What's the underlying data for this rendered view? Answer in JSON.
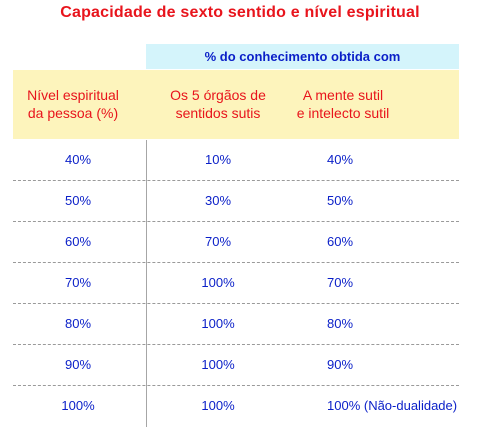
{
  "title": "Capacidade de sexto sentido e nível espiritual",
  "group_header": "% do conhecimento obtida com",
  "columns": [
    {
      "line1": "Nível espiritual",
      "line2": "da pessoa (%)"
    },
    {
      "line1": "Os 5 órgãos de",
      "line2": "sentidos  sutis"
    },
    {
      "line1": "A mente sutil",
      "line2": "e intelecto sutil"
    }
  ],
  "rows": [
    [
      "40%",
      "10%",
      "40%"
    ],
    [
      "50%",
      "30%",
      "50%"
    ],
    [
      "60%",
      "70%",
      "60%"
    ],
    [
      "70%",
      "100%",
      "70%"
    ],
    [
      "80%",
      "100%",
      "80%"
    ],
    [
      "90%",
      "100%",
      "90%"
    ],
    [
      "100%",
      "100%",
      "100% (Não-dualidade)"
    ]
  ],
  "colors": {
    "title": "#e8141c",
    "header_text": "#e8141c",
    "header_bg": "#fdf4bc",
    "group_bg": "#d4f4fb",
    "body_text": "#0a1fc8"
  }
}
